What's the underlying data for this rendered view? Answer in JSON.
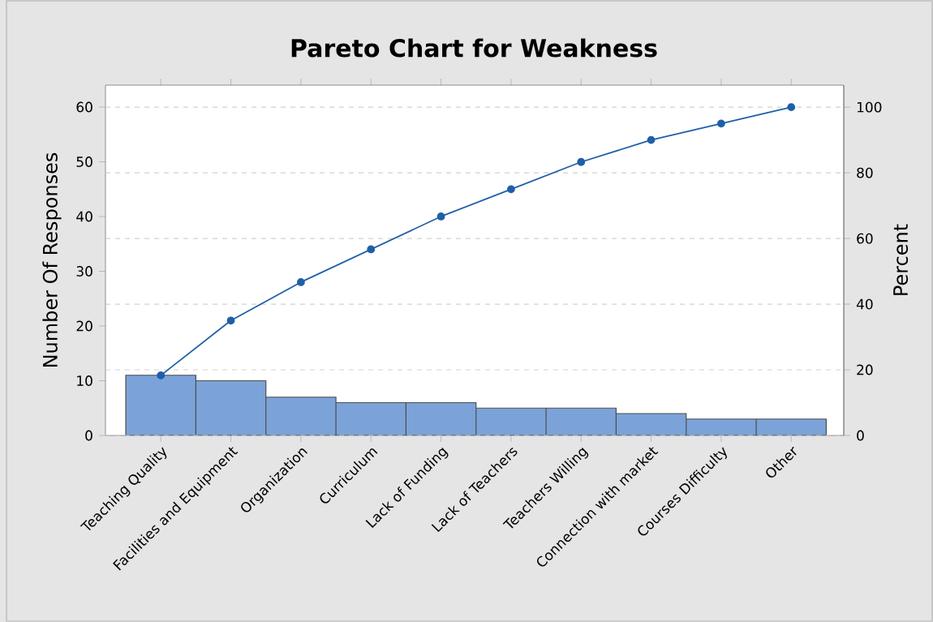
{
  "chart_data": {
    "type": "bar",
    "title": "Pareto Chart for Weakness",
    "ylabel": "Number Of Responses",
    "y2label": "Percent",
    "categories": [
      "Teaching Quality",
      "Facilities and Equipment",
      "Organization",
      "Curriculum",
      "Lack of Funding",
      "Lack of Teachers",
      "Teachers Willing",
      "Connection with market",
      "Courses Difficulty",
      "Other"
    ],
    "ylim": [
      0,
      64
    ],
    "yticks": [
      0,
      10,
      20,
      30,
      40,
      50,
      60
    ],
    "y2lim": [
      0,
      106.7
    ],
    "y2ticks": [
      0,
      20,
      40,
      60,
      80,
      100
    ],
    "grid": "y2",
    "series": [
      {
        "color": "#7ba3d9",
        "values": [
          11,
          10,
          7,
          6,
          6,
          5,
          5,
          4,
          3,
          3
        ]
      },
      {
        "type": "line",
        "axis": "y2",
        "color": "#1f5fa8",
        "marker": "circle",
        "line_style": "solid",
        "values": [
          18.3,
          35,
          46.7,
          56.7,
          66.7,
          75,
          83.3,
          90,
          95,
          100
        ]
      }
    ]
  }
}
